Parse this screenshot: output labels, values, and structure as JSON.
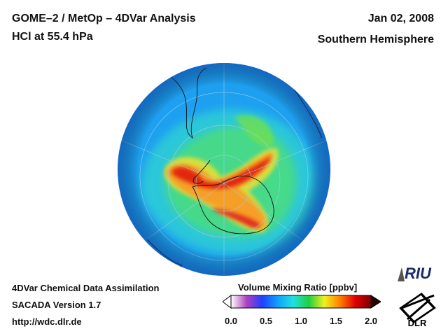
{
  "header": {
    "title_line1": "GOME–2 / MetOp – 4DVar Analysis",
    "title_line2": "HCl at 55.4 hPa",
    "date": "Jan 02, 2008",
    "hemisphere": "Southern Hemisphere"
  },
  "footer": {
    "line1": "4DVar Chemical Data Assimilation",
    "line2": "SACADA Version 1.7",
    "line3": "http://wdc.dlr.de"
  },
  "colorbar": {
    "title": "Volume Mixing Ratio [ppbv]",
    "ticks": [
      "0.0",
      "0.5",
      "1.0",
      "1.5",
      "2.0"
    ],
    "tick_values": [
      0.0,
      0.5,
      1.0,
      1.5,
      2.0
    ],
    "range": [
      0.0,
      2.0
    ],
    "stops": [
      "#ffffff",
      "#b040c0",
      "#2040ff",
      "#10a0ff",
      "#20e0e0",
      "#20d040",
      "#f0f020",
      "#ff8000",
      "#e00000",
      "#800000"
    ]
  },
  "logos": {
    "riu": "RIU",
    "dlr": "DLR"
  },
  "map": {
    "projection": "orthographic, south pole view",
    "background_color": "#1ea0f0"
  }
}
